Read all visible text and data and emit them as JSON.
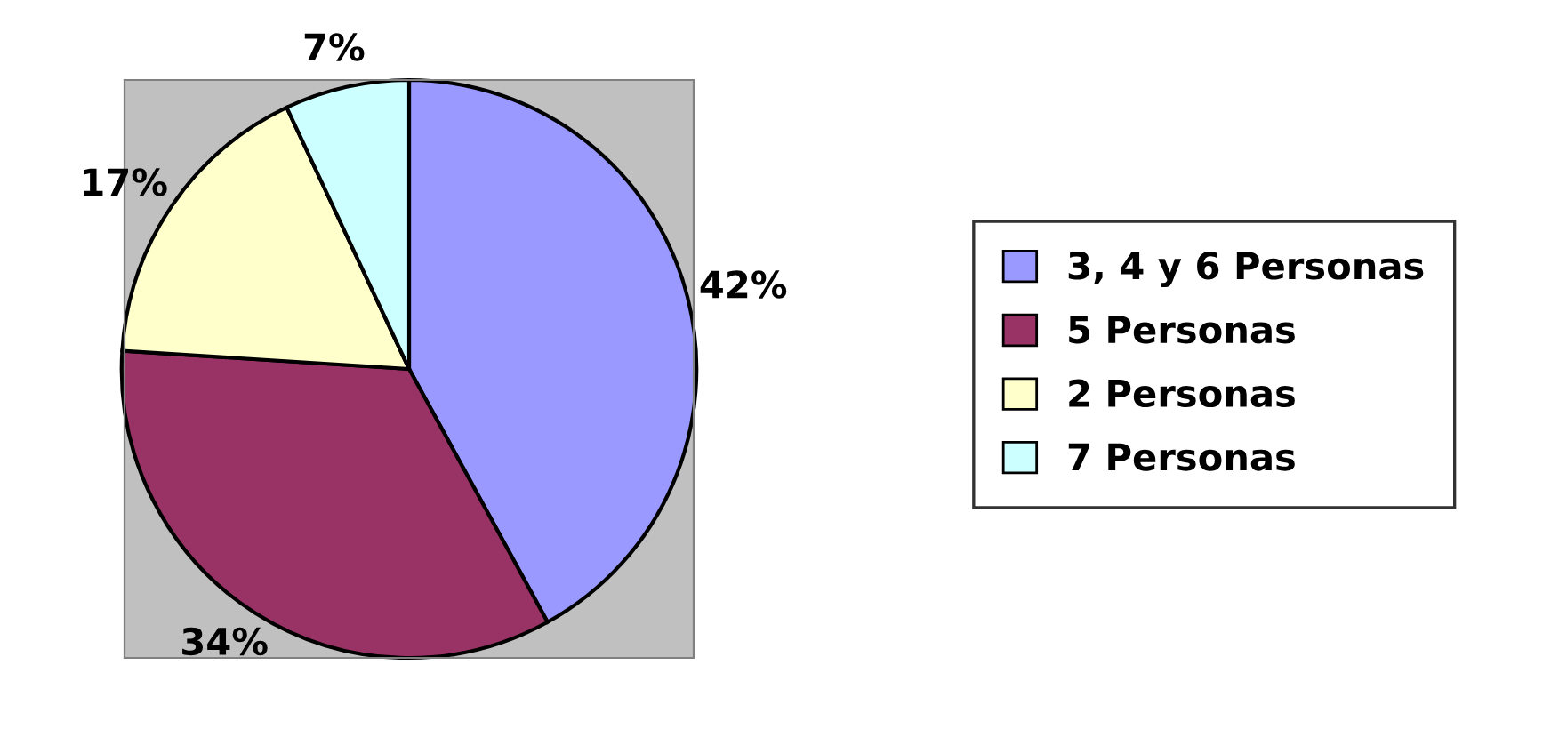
{
  "chart_data": {
    "type": "pie",
    "categories": [
      "3, 4 y 6 Personas",
      "5 Personas",
      "2 Personas",
      "7 Personas"
    ],
    "values": [
      42,
      34,
      17,
      7
    ],
    "value_labels": [
      "42%",
      "34%",
      "17%",
      "7%"
    ],
    "colors": [
      "#9999ff",
      "#993366",
      "#ffffcc",
      "#ccffff"
    ],
    "legend": "right"
  }
}
